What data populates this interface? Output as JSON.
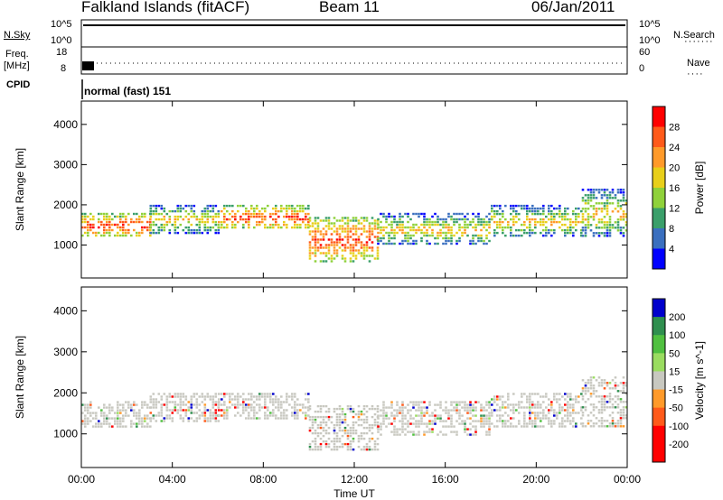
{
  "header": {
    "station": "Falkland Islands (fitACF)",
    "beam": "Beam 11",
    "date": "06/Jan/2011"
  },
  "strips": {
    "nsky_label": "N.Sky",
    "nsky_ticks": [
      "10^5",
      "10^0"
    ],
    "nsearch_label": "N.Search",
    "nsearch_ticks": [
      "10^5",
      "10^0"
    ],
    "freq_label": "Freq.",
    "freq_unit": "[MHz]",
    "freq_ticks": [
      "18",
      "8"
    ],
    "nave_label": "Nave",
    "nave_ticks": [
      "60",
      "0"
    ],
    "cpid_label": "CPID",
    "cpid_value": "normal (fast) 151"
  },
  "chart_data": [
    {
      "type": "heatmap",
      "name": "power",
      "ylabel": "Slant Range [km]",
      "xlabel": "Time UT",
      "x_ticks": [
        "00:00",
        "04:00",
        "08:00",
        "12:00",
        "16:00",
        "20:00",
        "00:00"
      ],
      "y_ticks": [
        1000,
        2000,
        3000,
        4000
      ],
      "ylim": [
        180,
        4580
      ],
      "xlim_hours": [
        0,
        24
      ],
      "colorbar": {
        "label": "Power [dB]",
        "ticks": [
          "28",
          "24",
          "20",
          "16",
          "12",
          "8",
          "4"
        ],
        "colors": [
          "#ff0000",
          "#ff5a1a",
          "#ff9a2a",
          "#e8cf1a",
          "#8fd13a",
          "#3a9f6a",
          "#3a6fbf",
          "#0000ff"
        ]
      },
      "echo_bands": [
        {
          "t0": 0,
          "t1": 3,
          "r0": 1200,
          "r1": 1800,
          "level": 24
        },
        {
          "t0": 3,
          "t1": 6,
          "r0": 1300,
          "r1": 2000,
          "level": 20
        },
        {
          "t0": 6,
          "t1": 10,
          "r0": 1400,
          "r1": 2000,
          "level": 24
        },
        {
          "t0": 10,
          "t1": 13,
          "r0": 600,
          "r1": 1700,
          "level": 22
        },
        {
          "t0": 13,
          "t1": 18,
          "r0": 1000,
          "r1": 1800,
          "level": 20
        },
        {
          "t0": 18,
          "t1": 22,
          "r0": 1200,
          "r1": 2000,
          "level": 12
        },
        {
          "t0": 22,
          "t1": 24,
          "r0": 1200,
          "r1": 2400,
          "level": 16
        }
      ]
    },
    {
      "type": "heatmap",
      "name": "velocity",
      "ylabel": "Slant Range [km]",
      "xlabel": "Time UT",
      "x_ticks": [
        "00:00",
        "04:00",
        "08:00",
        "12:00",
        "16:00",
        "20:00",
        "00:00"
      ],
      "y_ticks": [
        1000,
        2000,
        3000,
        4000
      ],
      "ylim": [
        180,
        4580
      ],
      "xlim_hours": [
        0,
        24
      ],
      "colorbar": {
        "label": "Velocity [m s^-1]",
        "ticks": [
          "200",
          "100",
          "50",
          "15",
          "-15",
          "-50",
          "-100",
          "-200"
        ],
        "colors": [
          "#0000cc",
          "#2f8f4f",
          "#50c040",
          "#9adc60",
          "#c8c8c0",
          "#ff9a2a",
          "#ff5a1a",
          "#ff0000",
          "#ff0000"
        ]
      },
      "echo_bands": [
        {
          "t0": 0,
          "t1": 3,
          "r0": 1200,
          "r1": 1800,
          "level": 0
        },
        {
          "t0": 3,
          "t1": 6,
          "r0": 1300,
          "r1": 2000,
          "level": 0
        },
        {
          "t0": 6,
          "t1": 10,
          "r0": 1400,
          "r1": 2000,
          "level": 0
        },
        {
          "t0": 10,
          "t1": 13,
          "r0": 600,
          "r1": 1700,
          "level": 0
        },
        {
          "t0": 13,
          "t1": 18,
          "r0": 1000,
          "r1": 1800,
          "level": 0
        },
        {
          "t0": 18,
          "t1": 22,
          "r0": 1200,
          "r1": 2000,
          "level": 0
        },
        {
          "t0": 22,
          "t1": 24,
          "r0": 1200,
          "r1": 2400,
          "level": -30
        }
      ]
    }
  ]
}
